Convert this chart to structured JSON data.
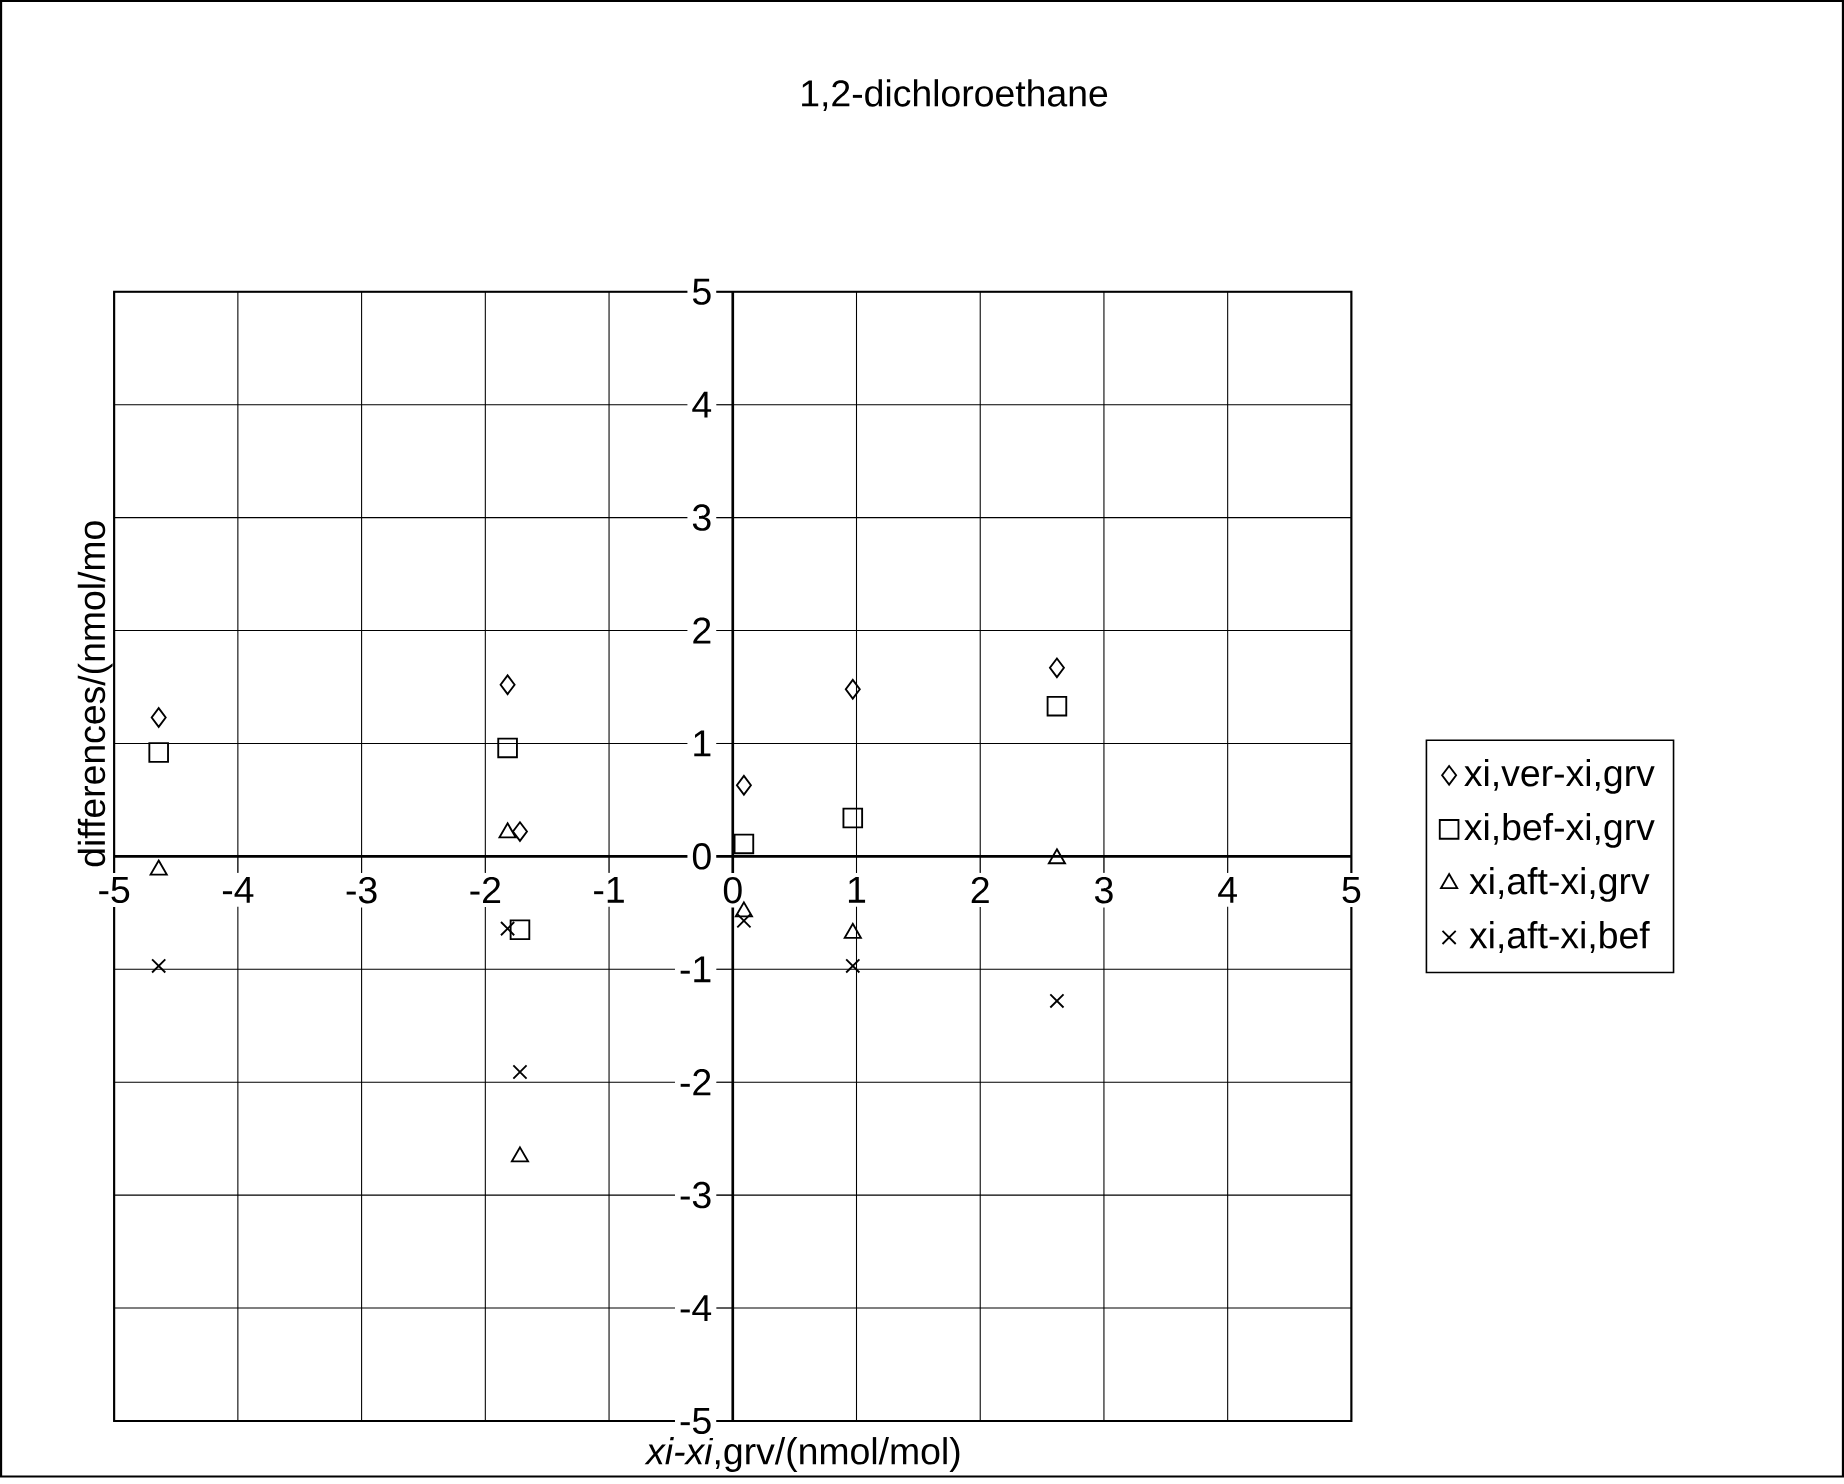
{
  "chart_data": {
    "type": "scatter",
    "title": "1,2-dichloroethane",
    "xlabel": "*xi-xi*,grv/(nmol/mol)",
    "ylabel": "differences/(nmol/mo",
    "x": [
      -4.64,
      -1.82,
      -1.72,
      0.09,
      0.97,
      2.62
    ],
    "series": [
      {
        "name": "xi,ver-xi,grv",
        "color": "#000000",
        "marker": "diamond",
        "values": [
          1.23,
          1.52,
          0.22,
          0.63,
          1.48,
          1.67
        ]
      },
      {
        "name": "xi,bef-xi,grv",
        "color": "#000000",
        "marker": "square",
        "values": [
          0.92,
          0.96,
          -0.65,
          0.11,
          0.34,
          1.33
        ]
      },
      {
        "name": "xi,aft-xi,grv",
        "color": "#000000",
        "marker": "triangle",
        "values": [
          -0.12,
          0.21,
          -2.66,
          -0.49,
          -0.68,
          -0.02
        ]
      },
      {
        "name": "xi,aft-xi,bef",
        "color": "#000000",
        "marker": "cross",
        "values": [
          -0.97,
          -0.64,
          -1.91,
          -0.57,
          -0.97,
          -1.28
        ]
      }
    ],
    "xlim": [
      -5,
      5
    ],
    "ylim": [
      -5,
      5
    ],
    "xticks": [
      -5,
      -4,
      -3,
      -2,
      -1,
      0,
      1,
      2,
      3,
      4,
      5
    ],
    "yticks": [
      -5,
      -4,
      -3,
      -2,
      -1,
      0,
      1,
      2,
      3,
      4,
      5
    ],
    "grid": true,
    "legend": "right"
  }
}
